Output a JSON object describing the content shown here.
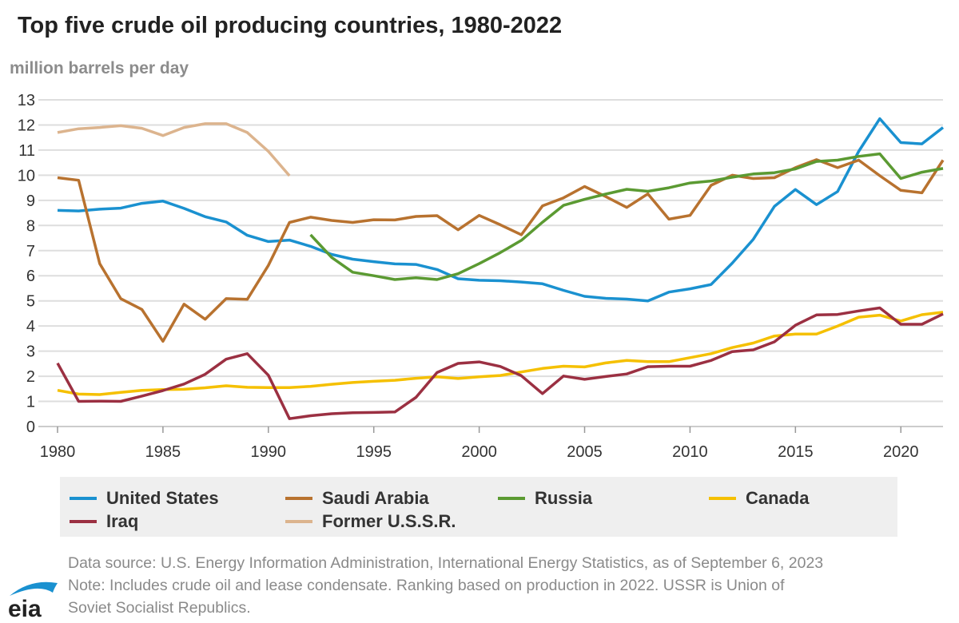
{
  "chart_data": {
    "type": "line",
    "title": "Top five crude oil producing countries, 1980-2022",
    "ylabel": "million barrels per day",
    "xlabel": "",
    "xlim": [
      1980,
      2022
    ],
    "ylim": [
      0,
      13
    ],
    "yticks": [
      0,
      1,
      2,
      3,
      4,
      5,
      6,
      7,
      8,
      9,
      10,
      11,
      12,
      13
    ],
    "xticks": [
      1980,
      1985,
      1990,
      1995,
      2000,
      2005,
      2010,
      2015,
      2020
    ],
    "grid": "horizontal",
    "legend_position": "bottom",
    "series": [
      {
        "name": "United States",
        "color": "#1a91d0",
        "start": 1980,
        "values": [
          8.6,
          8.58,
          8.65,
          8.69,
          8.88,
          8.97,
          8.68,
          8.35,
          8.14,
          7.61,
          7.36,
          7.42,
          7.17,
          6.85,
          6.66,
          6.56,
          6.47,
          6.45,
          6.25,
          5.88,
          5.82,
          5.8,
          5.75,
          5.68,
          5.42,
          5.18,
          5.1,
          5.07,
          5.0,
          5.35,
          5.48,
          5.65,
          6.5,
          7.45,
          8.76,
          9.43,
          8.83,
          9.35,
          10.95,
          12.25,
          11.3,
          11.25,
          11.9
        ]
      },
      {
        "name": "Saudi Arabia",
        "color": "#b8722f",
        "start": 1980,
        "values": [
          9.9,
          9.8,
          6.48,
          5.09,
          4.66,
          3.39,
          4.87,
          4.27,
          5.09,
          5.06,
          6.41,
          8.12,
          8.33,
          8.2,
          8.12,
          8.23,
          8.22,
          8.36,
          8.39,
          7.83,
          8.4,
          8.03,
          7.63,
          8.78,
          9.1,
          9.55,
          9.15,
          8.72,
          9.26,
          8.25,
          8.4,
          9.6,
          10.0,
          9.87,
          9.9,
          10.3,
          10.62,
          10.3,
          10.6,
          9.98,
          9.4,
          9.3,
          10.6
        ]
      },
      {
        "name": "Russia",
        "color": "#5b9a32",
        "start": 1992,
        "values": [
          7.63,
          6.73,
          6.14,
          6.0,
          5.85,
          5.92,
          5.85,
          6.08,
          6.48,
          6.92,
          7.41,
          8.13,
          8.8,
          9.04,
          9.25,
          9.44,
          9.36,
          9.5,
          9.69,
          9.77,
          9.92,
          10.05,
          10.1,
          10.25,
          10.55,
          10.6,
          10.75,
          10.85,
          9.87,
          10.12,
          10.27
        ]
      },
      {
        "name": "Canada",
        "color": "#f5c000",
        "start": 1980,
        "values": [
          1.44,
          1.29,
          1.27,
          1.36,
          1.44,
          1.47,
          1.48,
          1.54,
          1.62,
          1.56,
          1.55,
          1.55,
          1.6,
          1.68,
          1.75,
          1.8,
          1.84,
          1.92,
          1.98,
          1.91,
          1.98,
          2.03,
          2.17,
          2.31,
          2.4,
          2.37,
          2.53,
          2.63,
          2.58,
          2.58,
          2.74,
          2.9,
          3.14,
          3.32,
          3.6,
          3.68,
          3.68,
          4.0,
          4.35,
          4.43,
          4.2,
          4.45,
          4.55
        ]
      },
      {
        "name": "Iraq",
        "color": "#9b3042",
        "start": 1980,
        "values": [
          2.52,
          1.0,
          1.01,
          1.0,
          1.21,
          1.43,
          1.69,
          2.08,
          2.68,
          2.9,
          2.04,
          0.31,
          0.43,
          0.51,
          0.55,
          0.56,
          0.58,
          1.16,
          2.15,
          2.51,
          2.57,
          2.39,
          2.02,
          1.31,
          2.01,
          1.88,
          1.99,
          2.09,
          2.38,
          2.4,
          2.4,
          2.63,
          2.98,
          3.05,
          3.37,
          4.03,
          4.44,
          4.46,
          4.6,
          4.72,
          4.07,
          4.07,
          4.48
        ]
      },
      {
        "name": "Former U.S.S.R.",
        "color": "#dcb48e",
        "start": 1980,
        "values": [
          11.7,
          11.85,
          11.9,
          11.97,
          11.87,
          11.58,
          11.9,
          12.05,
          12.05,
          11.7,
          10.95,
          9.98
        ]
      }
    ]
  },
  "footer": {
    "source": "Data source: U.S. Energy Information Administration, International Energy Statistics, as of September 6, 2023",
    "note1": "Note: Includes crude oil and lease condensate. Ranking based on production in 2022. USSR is Union of",
    "note2": "Soviet Socialist Republics."
  },
  "logo": {
    "text": "eia",
    "color": "#1a91d0"
  }
}
